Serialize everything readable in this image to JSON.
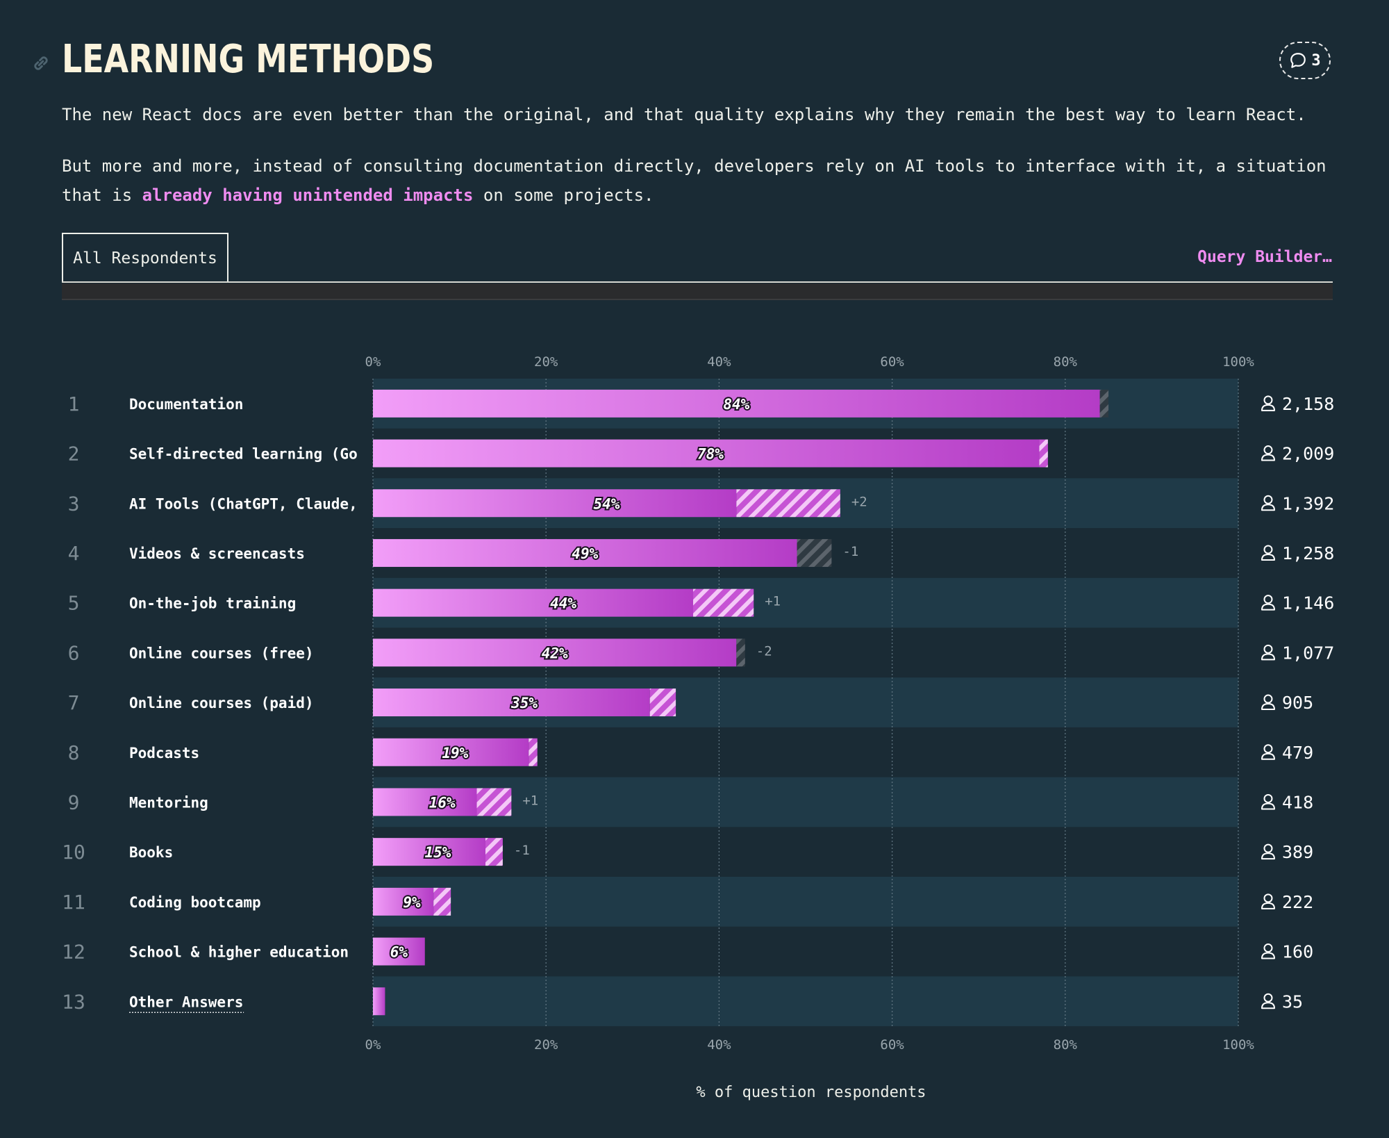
{
  "header": {
    "title": "LEARNING METHODS",
    "comment_count": "3",
    "paragraph1": "The new React docs are even better than the original, and that quality explains why they remain the best way to learn React.",
    "paragraph2_before": "But more and more, instead of consulting documentation directly, developers rely on AI tools to interface with it, a situation that is ",
    "paragraph2_link": "already having unintended impacts",
    "paragraph2_after": " on some projects."
  },
  "tabs": {
    "active": "All Respondents",
    "query_builder": "Query Builder…"
  },
  "colors": {
    "background": "#1a2b35",
    "row_band": "#1f3a48",
    "bar_start": "#f29ef8",
    "bar_end": "#b43cc6",
    "accent": "#ef8cf0",
    "negative_hatch": "#5a6068"
  },
  "chart_data": {
    "type": "bar",
    "orientation": "horizontal",
    "xlabel": "% of question respondents",
    "xlim": [
      0,
      100
    ],
    "xticks": [
      "0%",
      "20%",
      "40%",
      "60%",
      "80%",
      "100%"
    ],
    "grid": true,
    "rows": [
      {
        "rank": "1",
        "label": "Documentation",
        "value": 84,
        "value_label": "84%",
        "change": -1,
        "change_label": "",
        "count": "2,158",
        "underline": false
      },
      {
        "rank": "2",
        "label": "Self-directed learning (Go",
        "value": 78,
        "value_label": "78%",
        "change": 1,
        "change_label": "",
        "count": "2,009",
        "underline": false
      },
      {
        "rank": "3",
        "label": "AI Tools (ChatGPT, Claude,",
        "value": 54,
        "value_label": "54%",
        "change": 12,
        "change_label": "+2",
        "count": "1,392",
        "underline": false
      },
      {
        "rank": "4",
        "label": "Videos & screencasts",
        "value": 49,
        "value_label": "49%",
        "change": -4,
        "change_label": "-1",
        "count": "1,258",
        "underline": false
      },
      {
        "rank": "5",
        "label": "On-the-job training",
        "value": 44,
        "value_label": "44%",
        "change": 7,
        "change_label": "+1",
        "count": "1,146",
        "underline": false
      },
      {
        "rank": "6",
        "label": "Online courses (free)",
        "value": 42,
        "value_label": "42%",
        "change": -1,
        "change_label": "-2",
        "count": "1,077",
        "underline": false
      },
      {
        "rank": "7",
        "label": "Online courses (paid)",
        "value": 35,
        "value_label": "35%",
        "change": 3,
        "change_label": "",
        "count": "905",
        "underline": false
      },
      {
        "rank": "8",
        "label": "Podcasts",
        "value": 19,
        "value_label": "19%",
        "change": 1,
        "change_label": "",
        "count": "479",
        "underline": false
      },
      {
        "rank": "9",
        "label": "Mentoring",
        "value": 16,
        "value_label": "16%",
        "change": 4,
        "change_label": "+1",
        "count": "418",
        "underline": false
      },
      {
        "rank": "10",
        "label": "Books",
        "value": 15,
        "value_label": "15%",
        "change": 2,
        "change_label": "-1",
        "count": "389",
        "underline": false
      },
      {
        "rank": "11",
        "label": "Coding bootcamp",
        "value": 9,
        "value_label": "9%",
        "change": 2,
        "change_label": "",
        "count": "222",
        "underline": false
      },
      {
        "rank": "12",
        "label": "School & higher education",
        "value": 6,
        "value_label": "6%",
        "change": 0,
        "change_label": "",
        "count": "160",
        "underline": false
      },
      {
        "rank": "13",
        "label": "Other Answers",
        "value": 1.4,
        "value_label": "",
        "change": 0,
        "change_label": "",
        "count": "35",
        "underline": true
      }
    ]
  }
}
